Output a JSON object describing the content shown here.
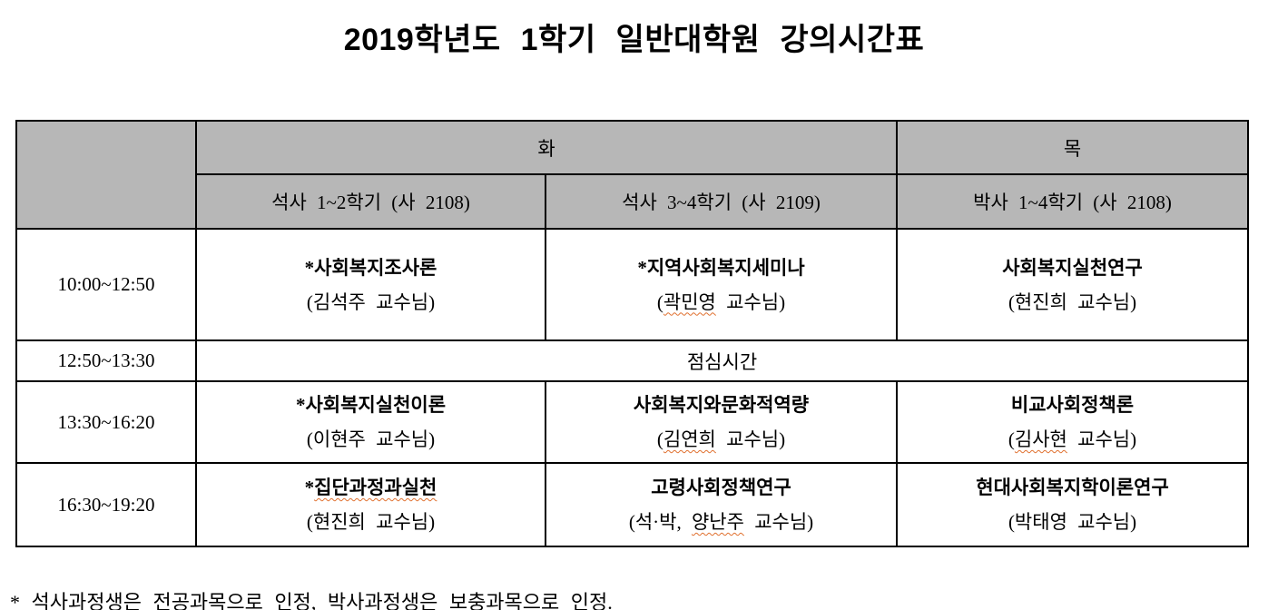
{
  "page": {
    "title": "2019학년도 1학기 일반대학원 강의시간표"
  },
  "timetable": {
    "day_headers": [
      {
        "label": "화"
      },
      {
        "label": "목"
      }
    ],
    "session_headers": [
      "석사 1~2학기 (사 2108)",
      "석사 3~4학기 (사 2109)",
      "박사 1~4학기 (사 2108)"
    ],
    "rows": [
      {
        "time": "10:00~12:50",
        "cells": [
          {
            "course": "*사회복지조사론",
            "professor": "(김석주 교수님)"
          },
          {
            "course": "*지역사회복지세미나",
            "professor": "(곽민영 교수님)"
          },
          {
            "course": "사회복지실천연구",
            "professor": "(현진희 교수님)"
          }
        ]
      },
      {
        "time": "12:50~13:30",
        "merged_label": "점심시간"
      },
      {
        "time": "13:30~16:20",
        "cells": [
          {
            "course": "*사회복지실천이론",
            "professor": "(이현주 교수님)"
          },
          {
            "course": "사회복지와문화적역량",
            "professor": "(김연희 교수님)"
          },
          {
            "course": "비교사회정책론",
            "professor": "(김사현 교수님)"
          }
        ]
      },
      {
        "time": "16:30~19:20",
        "cells": [
          {
            "course": "*집단과정과실천",
            "professor": "(현진희 교수님)"
          },
          {
            "course": "고령사회정책연구",
            "professor": "(석·박, 양난주 교수님)"
          },
          {
            "course": "현대사회복지학이론연구",
            "professor": "(박태영 교수님)"
          }
        ]
      }
    ]
  },
  "footnote": "* 석사과정생은 전공과목으로 인정, 박사과정생은 보충과목으로 인정.",
  "spellcheck_squiggles": [
    {
      "bind": "timetable.rows.0.cells.1.professor",
      "word": "곽민영"
    },
    {
      "bind": "timetable.rows.2.cells.1.professor",
      "word": "김연희"
    },
    {
      "bind": "timetable.rows.2.cells.2.professor",
      "word": "김사현"
    },
    {
      "bind": "timetable.rows.3.cells.0.course",
      "word": "집단과정과실천"
    },
    {
      "bind": "timetable.rows.3.cells.1.professor",
      "word": "양난주"
    },
    {
      "bind": "footnote",
      "word": "석사과정생은"
    },
    {
      "bind": "footnote",
      "word": "박사과정생은"
    }
  ],
  "colors": {
    "header_bg": "#b7b7b7",
    "table_border": "#000000",
    "squiggle": "#e0702f",
    "text": "#000000"
  }
}
